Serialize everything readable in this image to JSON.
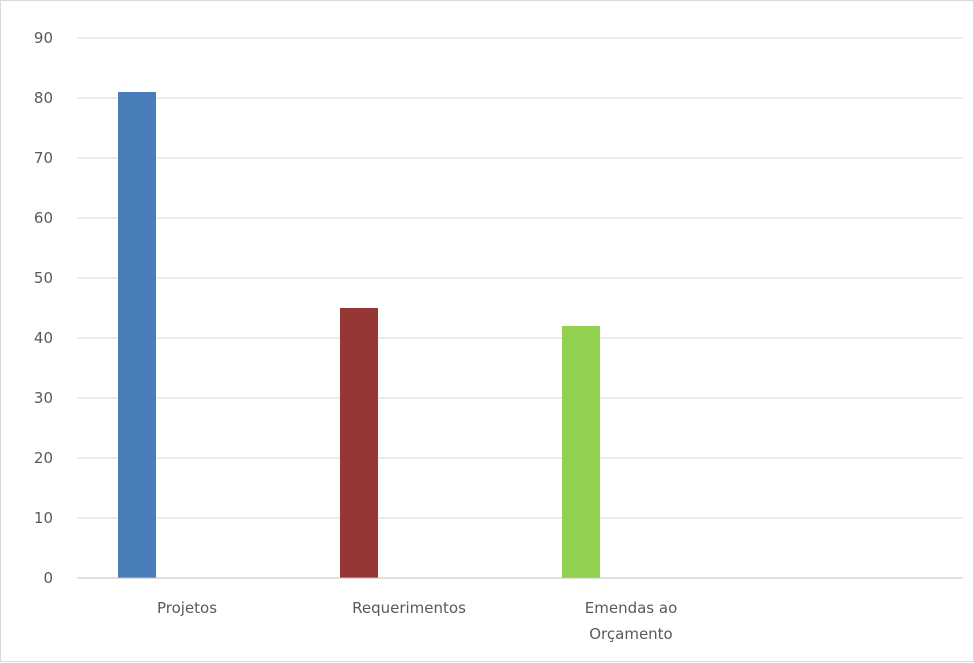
{
  "chart_data": {
    "type": "bar",
    "categories": [
      "Projetos",
      "Requerimentos",
      "Emendas ao Orçamento"
    ],
    "category_label_lines": [
      [
        "Projetos"
      ],
      [
        "Requerimentos"
      ],
      [
        "Emendas ao",
        "Orçamento"
      ]
    ],
    "values": [
      81,
      45,
      42
    ],
    "colors": [
      "#4a7ebb",
      "#953735",
      "#92d050"
    ],
    "ylim": [
      0,
      90
    ],
    "yticks": [
      0,
      10,
      20,
      30,
      40,
      50,
      60,
      70,
      80,
      90
    ],
    "grid": true,
    "legend": "none",
    "gridline_color": "#d9d9d9",
    "axis_color": "#bfbfbf"
  }
}
